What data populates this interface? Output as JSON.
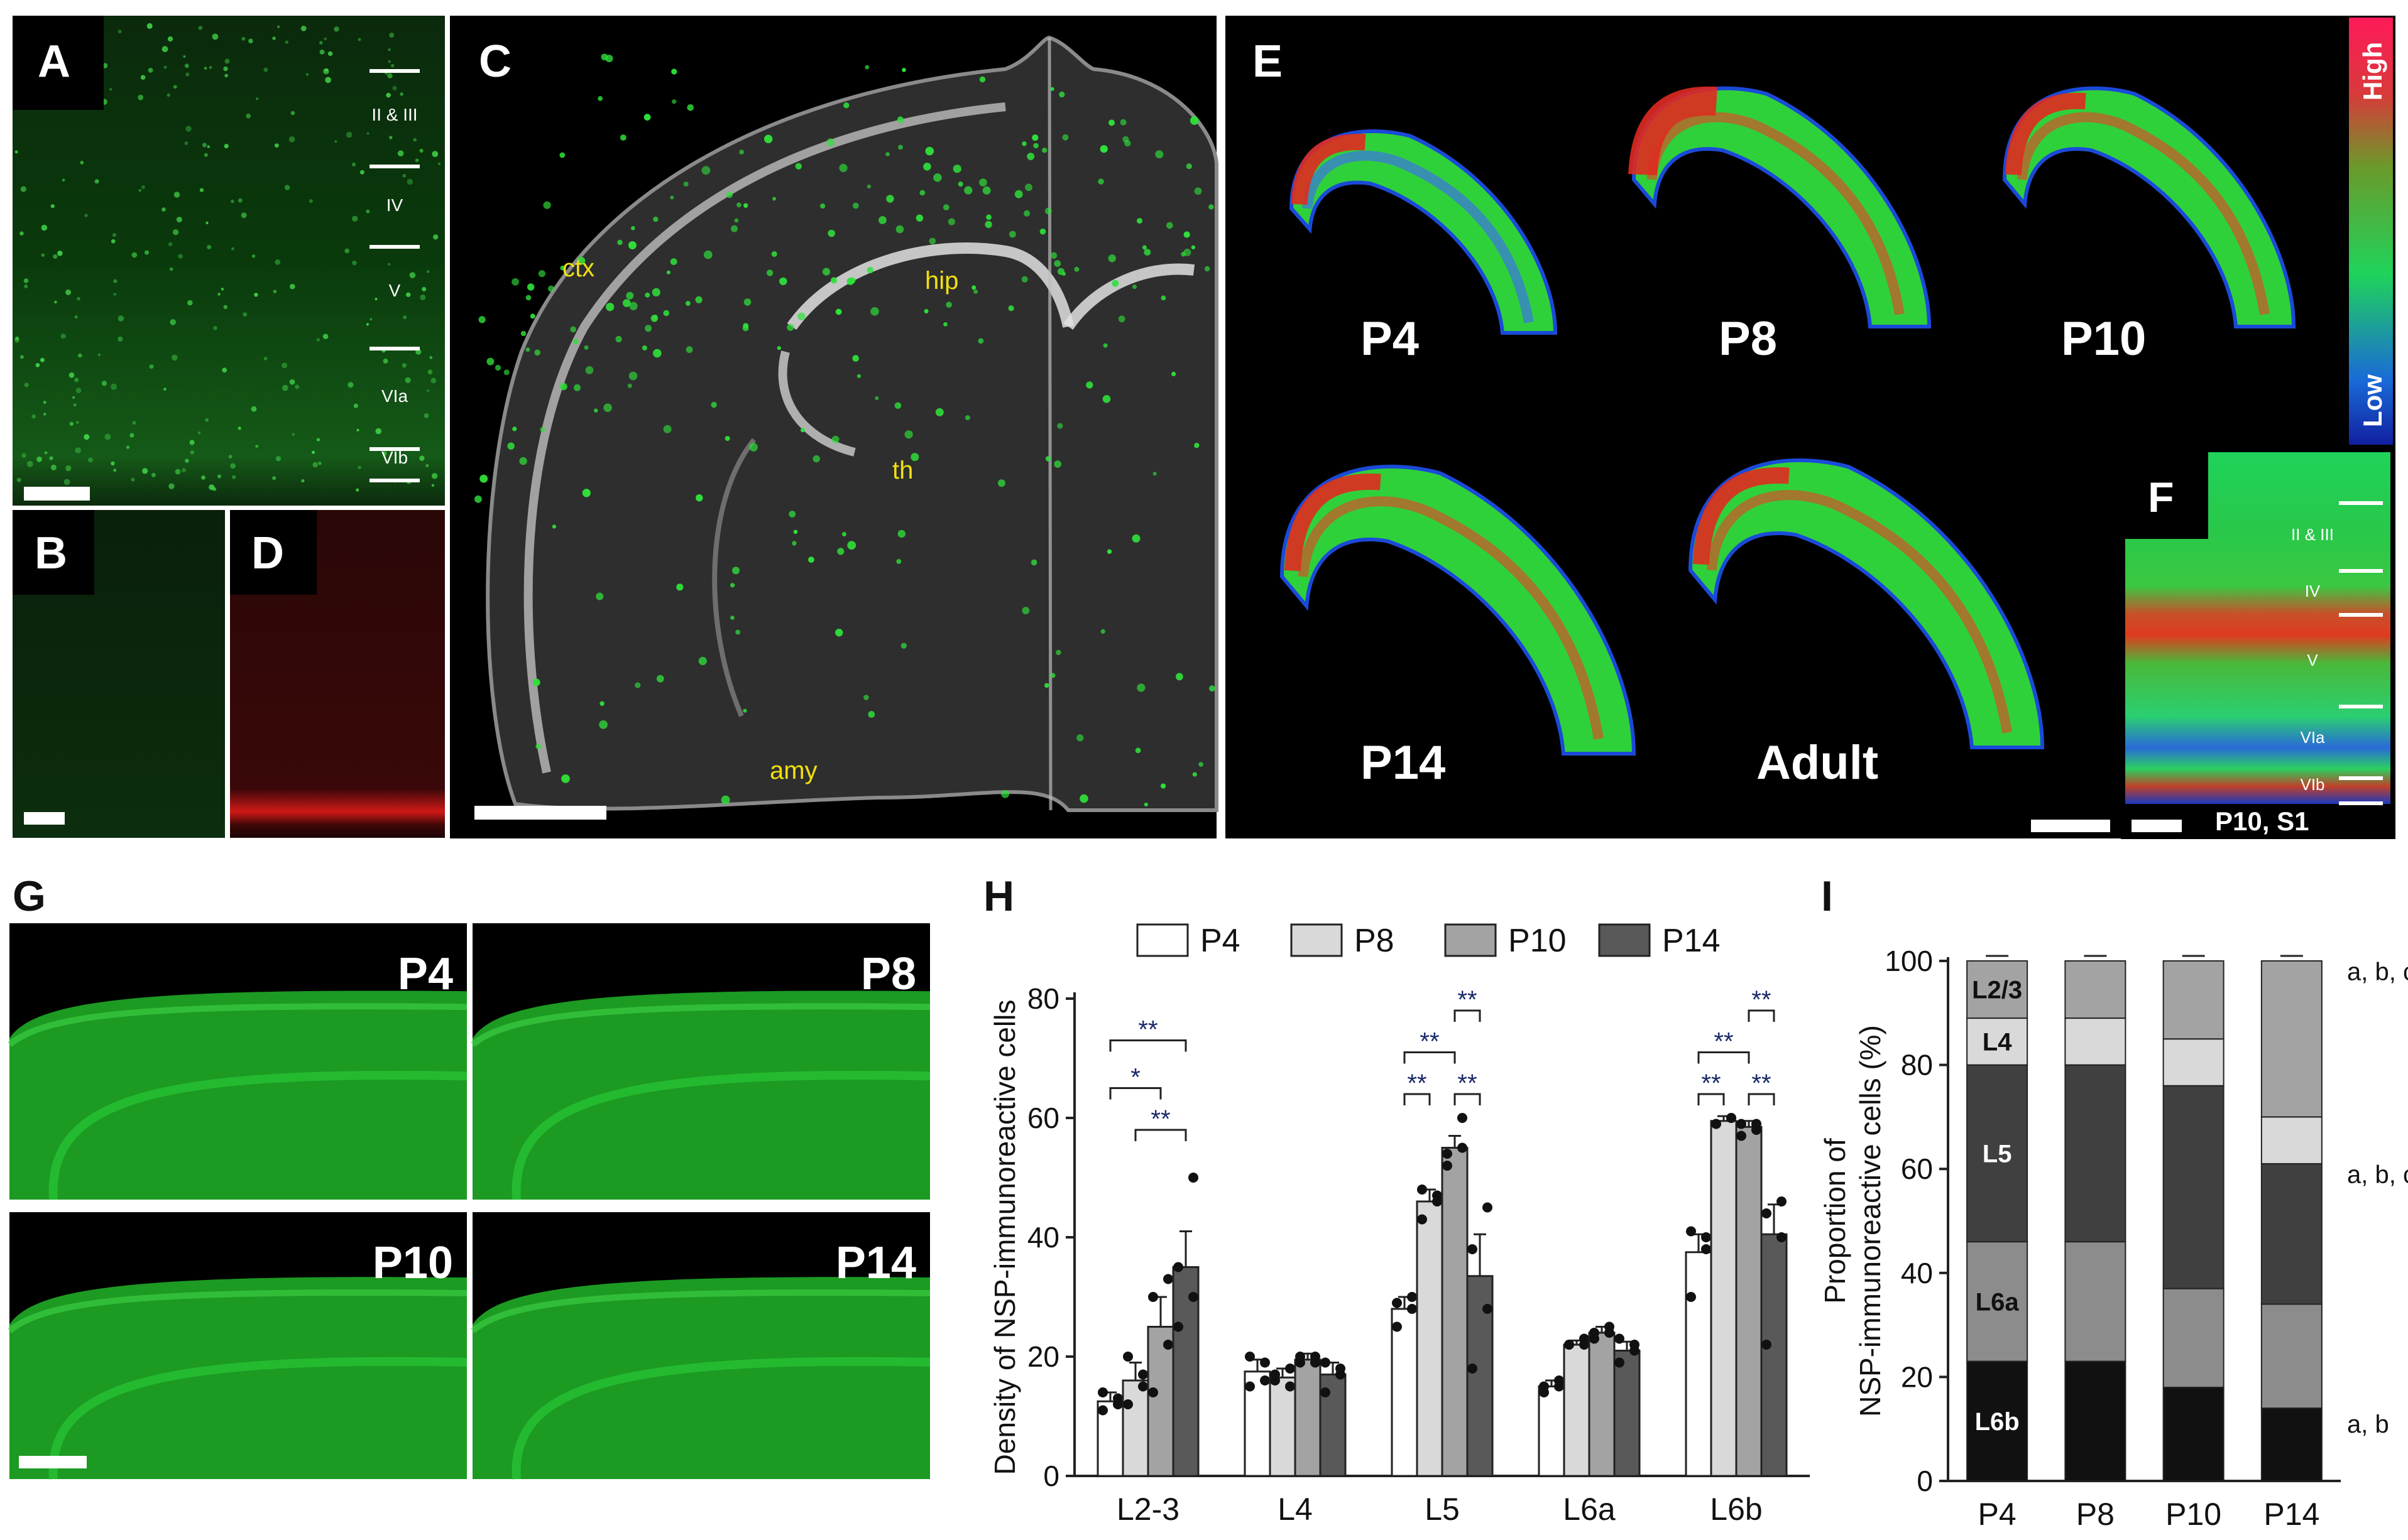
{
  "panels": {
    "A": {
      "label": "A",
      "layers": [
        "II & III",
        "IV",
        "V",
        "VIa",
        "VIb"
      ]
    },
    "B": {
      "label": "B"
    },
    "C": {
      "label": "C",
      "regions": [
        "ctx",
        "hip",
        "th",
        "amy"
      ]
    },
    "D": {
      "label": "D"
    },
    "E": {
      "label": "E",
      "ages": [
        "P4",
        "P8",
        "P10",
        "P14",
        "Adult"
      ],
      "scale_high": "High",
      "scale_low": "Low"
    },
    "F": {
      "label": "F",
      "layers": [
        "II & III",
        "IV",
        "V",
        "VIa",
        "VIb"
      ],
      "caption": "P10, S1"
    },
    "G": {
      "label": "G",
      "ages": [
        "P4",
        "P8",
        "P10",
        "P14"
      ]
    },
    "H": {
      "label": "H"
    },
    "I": {
      "label": "I"
    }
  },
  "colors": {
    "fluor_green": "#2fd13a",
    "fluor_red": "#d01818",
    "bar_P4": "#ffffff",
    "bar_P8": "#d9d9d9",
    "bar_P10": "#a3a3a3",
    "bar_P14": "#595959"
  },
  "chart_data": [
    {
      "type": "bar",
      "panel": "H",
      "categories": [
        "L2-3",
        "L4",
        "L5",
        "L6a",
        "L6b"
      ],
      "series": [
        {
          "name": "P4",
          "values": [
            12.5,
            17.5,
            28,
            15,
            37.5
          ],
          "errors": [
            1.5,
            2,
            2,
            1,
            3
          ]
        },
        {
          "name": "P8",
          "values": [
            16,
            16.5,
            46,
            22,
            59.5
          ],
          "errors": [
            3,
            1.5,
            2,
            0.7,
            0.8
          ]
        },
        {
          "name": "P10",
          "values": [
            25,
            19.5,
            55,
            24,
            58.5
          ],
          "errors": [
            5,
            1,
            2,
            1,
            1
          ]
        },
        {
          "name": "P14",
          "values": [
            35,
            17,
            33.5,
            21,
            40.5
          ],
          "errors": [
            6,
            2,
            7,
            1.5,
            5
          ]
        }
      ],
      "points": {
        "P4": [
          [
            11,
            13,
            14,
            12
          ],
          [
            15,
            19,
            20,
            16
          ],
          [
            25,
            30,
            29,
            28
          ],
          [
            14,
            16,
            15,
            15
          ],
          [
            30,
            40,
            41,
            38
          ]
        ],
        "P8": [
          [
            12,
            15,
            20,
            17
          ],
          [
            16,
            18,
            17,
            15
          ],
          [
            43,
            47,
            48,
            46
          ],
          [
            22,
            23,
            22,
            22
          ],
          [
            59,
            60,
            59,
            60
          ]
        ],
        "P10": [
          [
            14,
            22,
            30,
            33
          ],
          [
            19,
            20,
            20,
            19
          ],
          [
            52,
            60,
            54,
            55
          ],
          [
            23,
            25,
            24,
            24
          ],
          [
            57,
            59,
            59,
            58
          ]
        ],
        "P14": [
          [
            25,
            30,
            35,
            50
          ],
          [
            14,
            17,
            19,
            18
          ],
          [
            18,
            28,
            38,
            45
          ],
          [
            19,
            21,
            23,
            22
          ],
          [
            22,
            40,
            44,
            46
          ]
        ]
      },
      "ylabel": "Density of NSP-immunoreactive cells",
      "ylim": [
        0,
        80
      ],
      "yticks": [
        0,
        20,
        40,
        60,
        80
      ],
      "legend": [
        "P4",
        "P8",
        "P10",
        "P14"
      ],
      "significance": [
        {
          "group": 0,
          "from": 0,
          "to": 3,
          "y": 73,
          "label": "**"
        },
        {
          "group": 0,
          "from": 0,
          "to": 2,
          "y": 65,
          "label": "*"
        },
        {
          "group": 0,
          "from": 1,
          "to": 3,
          "y": 58,
          "label": "**"
        },
        {
          "group": 2,
          "from": 2,
          "to": 3,
          "y": 78,
          "label": "**"
        },
        {
          "group": 2,
          "from": 0,
          "to": 2,
          "y": 71,
          "label": "**"
        },
        {
          "group": 2,
          "from": 0,
          "to": 1,
          "y": 64,
          "label": "**"
        },
        {
          "group": 2,
          "from": 2,
          "to": 3,
          "y": 64,
          "label": "**"
        },
        {
          "group": 4,
          "from": 2,
          "to": 3,
          "y": 78,
          "label": "**"
        },
        {
          "group": 4,
          "from": 0,
          "to": 2,
          "y": 71,
          "label": "**"
        },
        {
          "group": 4,
          "from": 0,
          "to": 1,
          "y": 64,
          "label": "**"
        },
        {
          "group": 4,
          "from": 2,
          "to": 3,
          "y": 64,
          "label": "**"
        }
      ]
    },
    {
      "type": "bar",
      "stacked": true,
      "panel": "I",
      "categories": [
        "P4",
        "P8",
        "P10",
        "P14"
      ],
      "layers": [
        "L6b",
        "L6a",
        "L5",
        "L4",
        "L2/3"
      ],
      "layer_colors": [
        "#111111",
        "#8c8c8c",
        "#404040",
        "#d9d9d9",
        "#a3a3a3"
      ],
      "values": {
        "L6b": [
          23,
          23,
          18,
          14
        ],
        "L6a": [
          23,
          23,
          19,
          20
        ],
        "L5": [
          34,
          34,
          39,
          27
        ],
        "L4": [
          9,
          9,
          9,
          9
        ],
        "L2/3": [
          11,
          11,
          15,
          30
        ]
      },
      "ylabel": "Proportion of NSP-immunoreactive cells (%)",
      "ylim": [
        0,
        100
      ],
      "yticks": [
        0,
        20,
        40,
        60,
        80,
        100
      ],
      "row_annotations": [
        {
          "y": 98,
          "text": "a, b, c"
        },
        {
          "y": 59,
          "text": "a, b, c"
        },
        {
          "y": 11,
          "text": "a, b"
        }
      ]
    }
  ]
}
